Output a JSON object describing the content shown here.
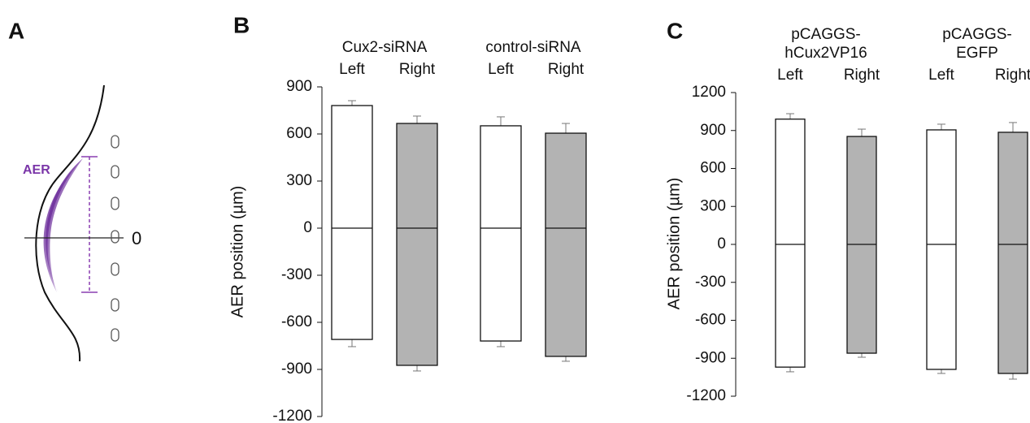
{
  "panel_a": {
    "label": "A",
    "aer": "AER",
    "zero": "0"
  },
  "chart_data": [
    {
      "type": "range-bar",
      "panel_label": "B",
      "y_label": "AER position (µm)",
      "groups": [
        "Cux2-siRNA",
        "control-siRNA"
      ],
      "categories": [
        "Left",
        "Right",
        "Left",
        "Right"
      ],
      "colors": [
        "#ffffff",
        "#b3b3b3",
        "#ffffff",
        "#b3b3b3"
      ],
      "upper": [
        781,
        667,
        652,
        605
      ],
      "upper_error": [
        31,
        47,
        57,
        62
      ],
      "lower": [
        -709,
        -874,
        -719,
        -817
      ],
      "lower_error": [
        46,
        36,
        36,
        31
      ],
      "ylim": [
        -1200,
        900
      ],
      "yticks": [
        900,
        600,
        300,
        0,
        -300,
        -600,
        -900,
        -1200
      ]
    },
    {
      "type": "range-bar",
      "panel_label": "C",
      "y_label": "AER position (µm)",
      "groups": [
        "pCAGGS-\nhCux2VP16",
        "pCAGGS-EGFP"
      ],
      "categories": [
        "Left",
        "Right",
        "Left",
        "Right"
      ],
      "colors": [
        "#ffffff",
        "#b3b3b3",
        "#ffffff",
        "#b3b3b3"
      ],
      "upper": [
        990,
        853,
        905,
        886
      ],
      "upper_error": [
        43,
        58,
        45,
        77
      ],
      "lower": [
        -970,
        -860,
        -988,
        -1020
      ],
      "lower_error": [
        37,
        32,
        32,
        45
      ],
      "ylim": [
        -1200,
        1200
      ],
      "yticks": [
        1200,
        900,
        600,
        300,
        0,
        -300,
        -600,
        -900,
        -1200
      ]
    }
  ]
}
